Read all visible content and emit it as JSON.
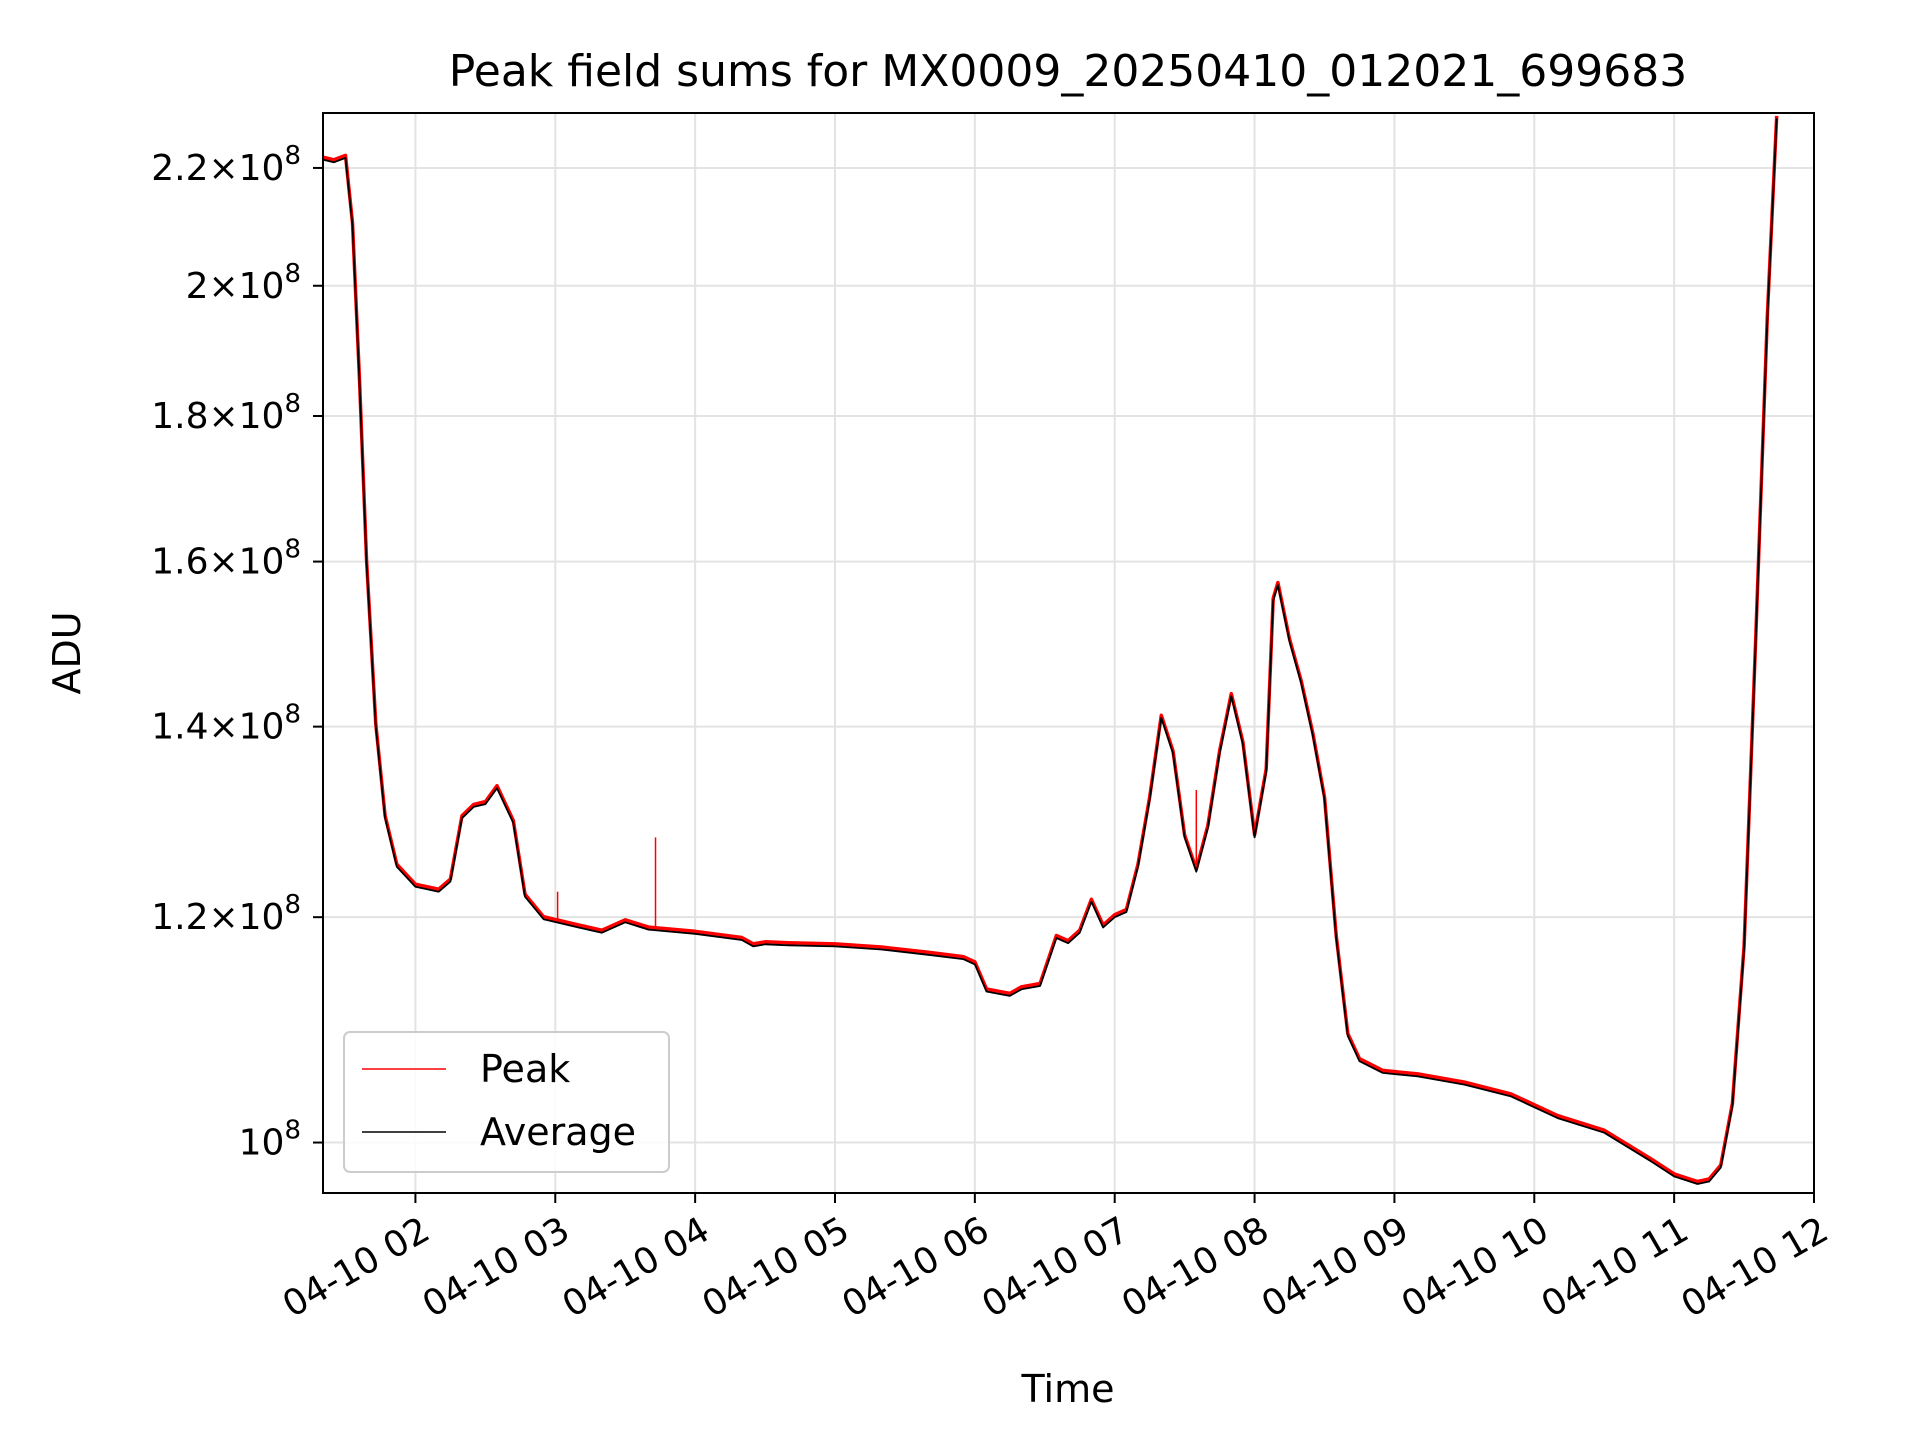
{
  "chart_data": {
    "type": "line",
    "title": "Peak field sums for MX0009_20250410_012021_699683",
    "xlabel": "Time",
    "ylabel": "ADU",
    "x_range": [
      "2025-04-10T01:20:21",
      "2025-04-10T12:00:00"
    ],
    "y_range": [
      96000000,
      230000000
    ],
    "y_scale": "log",
    "grid": true,
    "legend_position": "lower-left",
    "x_ticks": [
      {
        "t": "2025-04-10T02:00",
        "label": "04-10 02"
      },
      {
        "t": "2025-04-10T03:00",
        "label": "04-10 03"
      },
      {
        "t": "2025-04-10T04:00",
        "label": "04-10 04"
      },
      {
        "t": "2025-04-10T05:00",
        "label": "04-10 05"
      },
      {
        "t": "2025-04-10T06:00",
        "label": "04-10 06"
      },
      {
        "t": "2025-04-10T07:00",
        "label": "04-10 07"
      },
      {
        "t": "2025-04-10T08:00",
        "label": "04-10 08"
      },
      {
        "t": "2025-04-10T09:00",
        "label": "04-10 09"
      },
      {
        "t": "2025-04-10T10:00",
        "label": "04-10 10"
      },
      {
        "t": "2025-04-10T11:00",
        "label": "04-10 11"
      },
      {
        "t": "2025-04-10T12:00",
        "label": "04-10 12"
      }
    ],
    "y_ticks": [
      {
        "value": 100000000,
        "mantissa": "",
        "exponent": "8"
      },
      {
        "value": 120000000,
        "mantissa": "1.2",
        "exponent": "8"
      },
      {
        "value": 140000000,
        "mantissa": "1.4",
        "exponent": "8"
      },
      {
        "value": 160000000,
        "mantissa": "1.6",
        "exponent": "8"
      },
      {
        "value": 180000000,
        "mantissa": "1.8",
        "exponent": "8"
      },
      {
        "value": 200000000,
        "mantissa": "2",
        "exponent": "8"
      },
      {
        "value": 220000000,
        "mantissa": "2.2",
        "exponent": "8"
      }
    ],
    "series": [
      {
        "name": "Average",
        "color": "#000000",
        "points": [
          [
            "2025-04-10T01:20",
            221500000
          ],
          [
            "2025-04-10T01:25",
            221000000
          ],
          [
            "2025-04-10T01:30",
            221800000
          ],
          [
            "2025-04-10T01:33",
            210000000
          ],
          [
            "2025-04-10T01:36",
            185000000
          ],
          [
            "2025-04-10T01:39",
            160000000
          ],
          [
            "2025-04-10T01:43",
            140000000
          ],
          [
            "2025-04-10T01:47",
            130000000
          ],
          [
            "2025-04-10T01:52",
            125000000
          ],
          [
            "2025-04-10T02:00",
            123000000
          ],
          [
            "2025-04-10T02:10",
            122500000
          ],
          [
            "2025-04-10T02:15",
            123500000
          ],
          [
            "2025-04-10T02:20",
            130000000
          ],
          [
            "2025-04-10T02:25",
            131200000
          ],
          [
            "2025-04-10T02:30",
            131500000
          ],
          [
            "2025-04-10T02:35",
            133200000
          ],
          [
            "2025-04-10T02:42",
            129500000
          ],
          [
            "2025-04-10T02:47",
            122000000
          ],
          [
            "2025-04-10T02:55",
            119800000
          ],
          [
            "2025-04-10T03:10",
            119000000
          ],
          [
            "2025-04-10T03:20",
            118500000
          ],
          [
            "2025-04-10T03:30",
            119500000
          ],
          [
            "2025-04-10T03:40",
            118800000
          ],
          [
            "2025-04-10T04:00",
            118400000
          ],
          [
            "2025-04-10T04:20",
            117800000
          ],
          [
            "2025-04-10T04:25",
            117200000
          ],
          [
            "2025-04-10T04:30",
            117400000
          ],
          [
            "2025-04-10T04:40",
            117300000
          ],
          [
            "2025-04-10T05:00",
            117200000
          ],
          [
            "2025-04-10T05:20",
            116900000
          ],
          [
            "2025-04-10T05:40",
            116400000
          ],
          [
            "2025-04-10T05:55",
            116000000
          ],
          [
            "2025-04-10T06:00",
            115500000
          ],
          [
            "2025-04-10T06:05",
            113000000
          ],
          [
            "2025-04-10T06:10",
            112800000
          ],
          [
            "2025-04-10T06:15",
            112600000
          ],
          [
            "2025-04-10T06:20",
            113200000
          ],
          [
            "2025-04-10T06:28",
            113500000
          ],
          [
            "2025-04-10T06:35",
            118000000
          ],
          [
            "2025-04-10T06:40",
            117500000
          ],
          [
            "2025-04-10T06:45",
            118500000
          ],
          [
            "2025-04-10T06:50",
            121500000
          ],
          [
            "2025-04-10T06:55",
            119000000
          ],
          [
            "2025-04-10T07:00",
            120000000
          ],
          [
            "2025-04-10T07:05",
            120500000
          ],
          [
            "2025-04-10T07:10",
            125000000
          ],
          [
            "2025-04-10T07:15",
            132000000
          ],
          [
            "2025-04-10T07:20",
            141000000
          ],
          [
            "2025-04-10T07:25",
            137000000
          ],
          [
            "2025-04-10T07:30",
            128000000
          ],
          [
            "2025-04-10T07:35",
            124500000
          ],
          [
            "2025-04-10T07:40",
            129000000
          ],
          [
            "2025-04-10T07:45",
            137000000
          ],
          [
            "2025-04-10T07:50",
            143500000
          ],
          [
            "2025-04-10T07:55",
            138000000
          ],
          [
            "2025-04-10T08:00",
            128000000
          ],
          [
            "2025-04-10T08:05",
            135000000
          ],
          [
            "2025-04-10T08:08",
            155000000
          ],
          [
            "2025-04-10T08:10",
            157000000
          ],
          [
            "2025-04-10T08:15",
            150000000
          ],
          [
            "2025-04-10T08:20",
            145000000
          ],
          [
            "2025-04-10T08:25",
            139000000
          ],
          [
            "2025-04-10T08:30",
            132000000
          ],
          [
            "2025-04-10T08:35",
            118000000
          ],
          [
            "2025-04-10T08:40",
            109000000
          ],
          [
            "2025-04-10T08:45",
            106800000
          ],
          [
            "2025-04-10T08:55",
            105800000
          ],
          [
            "2025-04-10T09:10",
            105500000
          ],
          [
            "2025-04-10T09:30",
            104800000
          ],
          [
            "2025-04-10T09:50",
            103800000
          ],
          [
            "2025-04-10T10:10",
            102000000
          ],
          [
            "2025-04-10T10:30",
            100800000
          ],
          [
            "2025-04-10T10:50",
            98500000
          ],
          [
            "2025-04-10T11:00",
            97300000
          ],
          [
            "2025-04-10T11:10",
            96700000
          ],
          [
            "2025-04-10T11:15",
            96900000
          ],
          [
            "2025-04-10T11:20",
            98000000
          ],
          [
            "2025-04-10T11:25",
            103000000
          ],
          [
            "2025-04-10T11:30",
            117000000
          ],
          [
            "2025-04-10T11:35",
            150000000
          ],
          [
            "2025-04-10T11:40",
            195000000
          ],
          [
            "2025-04-10T11:44",
            229000000
          ]
        ]
      },
      {
        "name": "Peak",
        "color": "#ff0000",
        "spikes": [
          [
            "2025-04-10T03:01",
            122500000
          ],
          [
            "2025-04-10T03:43",
            128000000
          ],
          [
            "2025-04-10T07:35",
            133000000
          ]
        ]
      }
    ]
  }
}
